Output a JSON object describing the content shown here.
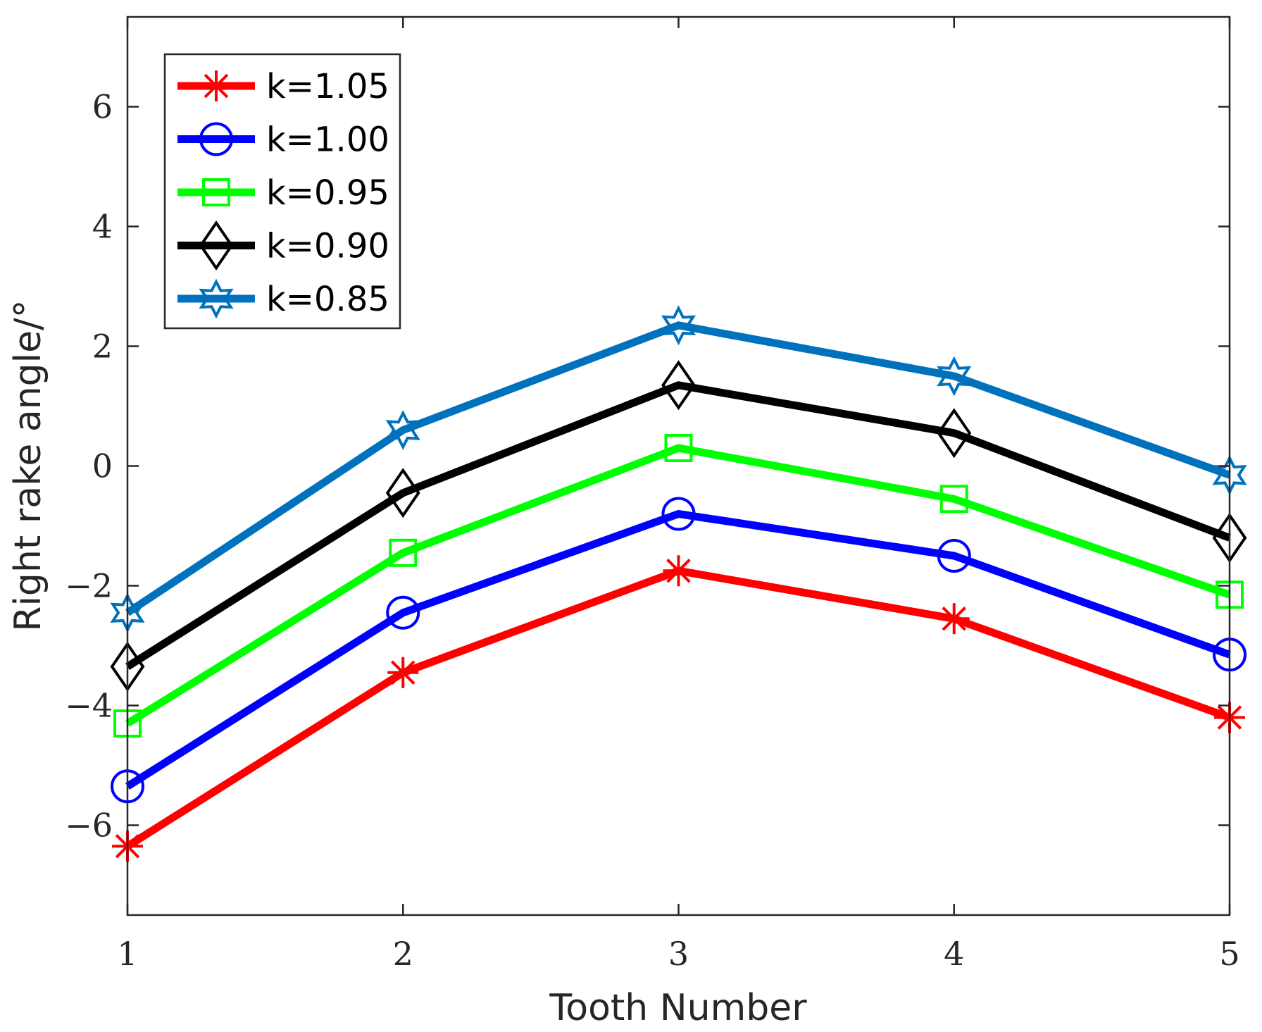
{
  "chart_data": {
    "type": "line",
    "title": "",
    "xlabel": "Tooth Number",
    "ylabel": "Right rake angle/°",
    "x": [
      1,
      2,
      3,
      4,
      5
    ],
    "xlim": [
      1,
      5
    ],
    "ylim": [
      -7.5,
      7.5
    ],
    "xticks": [
      1,
      2,
      3,
      4,
      5
    ],
    "xtick_labels": [
      "1",
      "2",
      "3",
      "4",
      "5"
    ],
    "yticks": [
      -6,
      -4,
      -2,
      0,
      2,
      4,
      6
    ],
    "ytick_labels": [
      "−6",
      "−4",
      "−2",
      "0",
      "2",
      "4",
      "6"
    ],
    "grid": false,
    "legend_position": "top-left",
    "series": [
      {
        "name": "k=1.05",
        "color": "#ff0000",
        "marker": "asterisk",
        "values": [
          -6.35,
          -3.45,
          -1.75,
          -2.55,
          -4.2
        ]
      },
      {
        "name": "k=1.00",
        "color": "#0000ff",
        "marker": "circle",
        "values": [
          -5.35,
          -2.45,
          -0.8,
          -1.5,
          -3.15
        ]
      },
      {
        "name": "k=0.95",
        "color": "#00ff00",
        "marker": "square",
        "values": [
          -4.3,
          -1.45,
          0.3,
          -0.55,
          -2.15
        ]
      },
      {
        "name": "k=0.90",
        "color": "#000000",
        "marker": "diamond",
        "values": [
          -3.35,
          -0.45,
          1.35,
          0.55,
          -1.2
        ]
      },
      {
        "name": "k=0.85",
        "color": "#0072bd",
        "marker": "hexagram",
        "values": [
          -2.45,
          0.6,
          2.35,
          1.5,
          -0.15
        ]
      }
    ]
  }
}
